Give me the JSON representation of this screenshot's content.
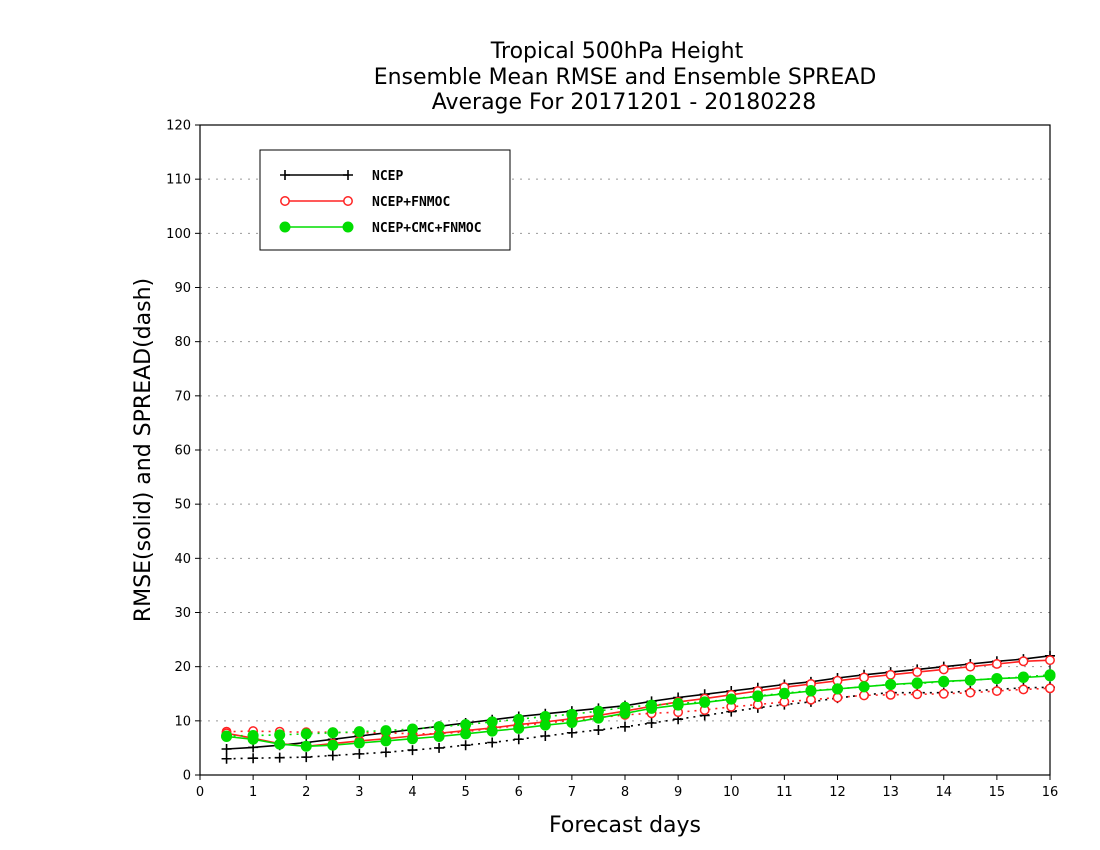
{
  "chart_data": {
    "type": "line",
    "title_lines": [
      "Tropical 500hPa Height",
      "Ensemble Mean RMSE and Ensemble SPREAD",
      "Average For 20171201 - 20180228"
    ],
    "xlabel": "Forecast days",
    "ylabel": "RMSE(solid) and SPREAD(dash)",
    "xlim": [
      0,
      16
    ],
    "ylim": [
      0,
      120
    ],
    "x_ticks": [
      0,
      1,
      2,
      3,
      4,
      5,
      6,
      7,
      8,
      9,
      10,
      11,
      12,
      13,
      14,
      15,
      16
    ],
    "y_ticks": [
      0,
      10,
      20,
      30,
      40,
      50,
      60,
      70,
      80,
      90,
      100,
      110,
      120
    ],
    "grid": "horizontal dotted",
    "legend_position": "top-left",
    "x": [
      0.5,
      1,
      1.5,
      2,
      2.5,
      3,
      3.5,
      4,
      4.5,
      5,
      5.5,
      6,
      6.5,
      7,
      7.5,
      8,
      8.5,
      9,
      9.5,
      10,
      10.5,
      11,
      11.5,
      12,
      12.5,
      13,
      13.5,
      14,
      14.5,
      15,
      15.5,
      16
    ],
    "series": [
      {
        "name": "NCEP",
        "color": "#000000",
        "marker": "plus",
        "rmse": [
          4.8,
          5.1,
          5.5,
          6.0,
          6.6,
          7.2,
          7.8,
          8.4,
          9.0,
          9.6,
          10.2,
          10.8,
          11.3,
          11.8,
          12.3,
          12.8,
          13.6,
          14.3,
          14.9,
          15.5,
          16.1,
          16.7,
          17.2,
          17.9,
          18.5,
          19.0,
          19.5,
          20.0,
          20.5,
          21.0,
          21.4,
          22.0
        ],
        "spread": [
          3.0,
          3.1,
          3.2,
          3.3,
          3.6,
          3.9,
          4.2,
          4.6,
          5.0,
          5.5,
          6.0,
          6.6,
          7.2,
          7.8,
          8.3,
          8.9,
          9.6,
          10.3,
          11.0,
          11.7,
          12.4,
          13.0,
          13.5,
          14.2,
          14.8,
          15.2,
          15.2,
          15.2,
          15.5,
          15.8,
          16.1,
          16.2
        ]
      },
      {
        "name": "NCEP+FNMOC",
        "color": "#ff2222",
        "marker": "open-circle",
        "rmse": [
          7.7,
          6.8,
          5.8,
          5.3,
          5.8,
          6.3,
          6.7,
          7.2,
          7.7,
          8.2,
          8.7,
          9.3,
          9.8,
          10.4,
          11.0,
          11.8,
          12.7,
          13.5,
          14.1,
          14.8,
          15.5,
          16.2,
          16.8,
          17.4,
          18.0,
          18.5,
          19.0,
          19.5,
          20.0,
          20.5,
          21.0,
          21.2
        ],
        "spread": [
          8.0,
          8.1,
          8.0,
          7.9,
          7.9,
          7.8,
          7.8,
          7.6,
          7.6,
          8.0,
          8.6,
          9.1,
          9.6,
          10.1,
          10.6,
          11.1,
          11.4,
          11.6,
          12.0,
          12.6,
          13.0,
          13.5,
          13.9,
          14.3,
          14.7,
          14.8,
          14.9,
          15.0,
          15.2,
          15.5,
          15.8,
          16.0
        ]
      },
      {
        "name": "NCEP+CMC+FNMOC",
        "color": "#00dd00",
        "marker": "filled-circle",
        "rmse": [
          7.1,
          6.6,
          5.7,
          5.3,
          5.5,
          5.9,
          6.3,
          6.7,
          7.1,
          7.6,
          8.1,
          8.6,
          9.2,
          9.7,
          10.5,
          11.4,
          12.3,
          12.9,
          13.4,
          14.0,
          14.5,
          15.0,
          15.5,
          15.9,
          16.3,
          16.7,
          17.0,
          17.3,
          17.5,
          17.8,
          18.0,
          18.3
        ],
        "spread": [
          7.2,
          7.3,
          7.4,
          7.6,
          7.8,
          8.0,
          8.2,
          8.5,
          8.9,
          9.3,
          9.8,
          10.3,
          10.8,
          11.2,
          11.8,
          12.5,
          12.9,
          13.2,
          13.5,
          14.0,
          14.6,
          15.1,
          15.6,
          15.9,
          16.3,
          16.7,
          16.9,
          17.2,
          17.5,
          17.8,
          18.1,
          18.5
        ]
      }
    ]
  }
}
